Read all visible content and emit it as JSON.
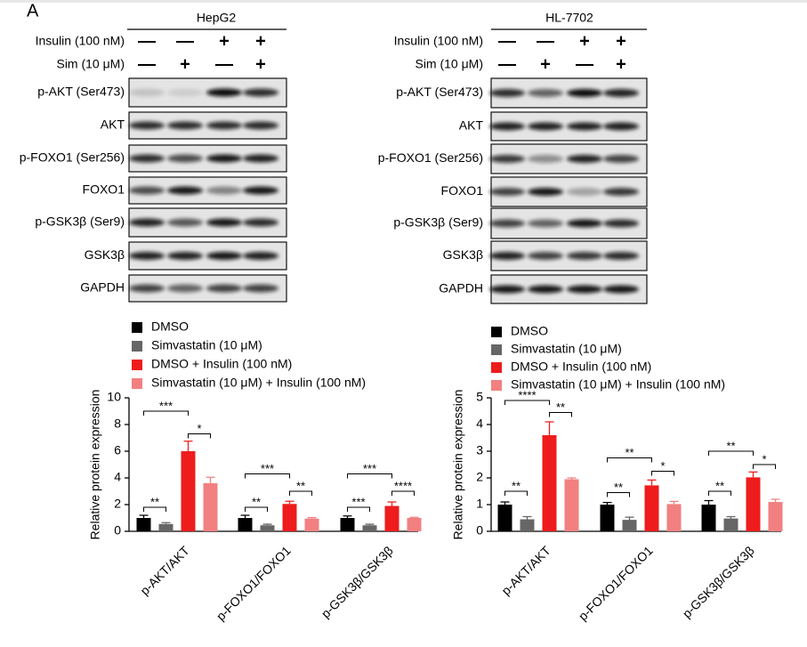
{
  "panel_label": "A",
  "blots": [
    {
      "cell_line": "HepG2",
      "treatments": [
        {
          "label": "Insulin (100 nM)",
          "signs": [
            "—",
            "—",
            "+",
            "+"
          ]
        },
        {
          "label": "Sim (10 μM)",
          "signs": [
            "—",
            "+",
            "—",
            "+"
          ]
        }
      ],
      "proteins": [
        "p-AKT (Ser473)",
        "AKT",
        "p-FOXO1 (Ser256)",
        "FOXO1",
        "p-GSK3β (Ser9)",
        "GSK3β",
        "GAPDH"
      ]
    },
    {
      "cell_line": "HL-7702",
      "treatments": [
        {
          "label": "Insulin (100 nM)",
          "signs": [
            "—",
            "—",
            "+",
            "+"
          ]
        },
        {
          "label": "Sim (10 μM)",
          "signs": [
            "—",
            "+",
            "—",
            "+"
          ]
        }
      ],
      "proteins": [
        "p-AKT (Ser473)",
        "AKT",
        "p-FOXO1 (Ser256)",
        "FOXO1",
        "p-GSK3β (Ser9)",
        "GSK3β",
        "GAPDH"
      ]
    }
  ],
  "chart_data": [
    {
      "type": "bar",
      "y_label": "Relative protein expression",
      "categories": [
        "p-AKT/AKT",
        "p-FOXO1/FOXO1",
        "p-GSK3β/GSK3β"
      ],
      "series": [
        {
          "name": "DMSO",
          "color": "#000000",
          "values": [
            1,
            1,
            1
          ],
          "errors": [
            0.2,
            0.2,
            0.15
          ]
        },
        {
          "name": "Simvastatin (10 μM)",
          "color": "#666666",
          "values": [
            0.55,
            0.45,
            0.45
          ],
          "errors": [
            0.1,
            0.08,
            0.08
          ]
        },
        {
          "name": "DMSO + Insulin (100 nM)",
          "color": "#ee1c1c",
          "values": [
            6.0,
            2.05,
            1.9
          ],
          "errors": [
            0.75,
            0.2,
            0.3
          ]
        },
        {
          "name": "Simvastatin (10 μM) + Insulin (100 nM)",
          "color": "#f28080",
          "values": [
            3.6,
            0.95,
            1.0
          ],
          "errors": [
            0.45,
            0.08,
            0.05
          ]
        }
      ],
      "ylim": [
        0,
        10
      ],
      "yticks": [
        0,
        2,
        4,
        6,
        8,
        10
      ],
      "annotations": [
        "**",
        "***",
        "*",
        "**",
        "***",
        "**",
        "***",
        "***",
        "****"
      ]
    },
    {
      "type": "bar",
      "y_label": "Relative protein expression",
      "categories": [
        "p-AKT/AKT",
        "p-FOXO1/FOXO1",
        "p-GSK3β/GSK3β"
      ],
      "series": [
        {
          "name": "DMSO",
          "color": "#000000",
          "values": [
            1.0,
            1.0,
            1.0
          ],
          "errors": [
            0.1,
            0.08,
            0.15
          ]
        },
        {
          "name": "Simvastatin (10 μM)",
          "color": "#666666",
          "values": [
            0.45,
            0.43,
            0.48
          ],
          "errors": [
            0.1,
            0.1,
            0.07
          ]
        },
        {
          "name": "DMSO + Insulin (100 nM)",
          "color": "#ee1c1c",
          "values": [
            3.6,
            1.72,
            2.02
          ],
          "errors": [
            0.5,
            0.2,
            0.2
          ]
        },
        {
          "name": "Simvastatin (10 μM) + Insulin (100 nM)",
          "color": "#f28080",
          "values": [
            1.95,
            1.02,
            1.1
          ],
          "errors": [
            0.05,
            0.1,
            0.1
          ]
        }
      ],
      "ylim": [
        0,
        5
      ],
      "yticks": [
        0,
        1,
        2,
        3,
        4,
        5
      ],
      "annotations": [
        "**",
        "****",
        "**",
        "**",
        "**",
        "*",
        "**",
        "**",
        "*"
      ]
    }
  ]
}
